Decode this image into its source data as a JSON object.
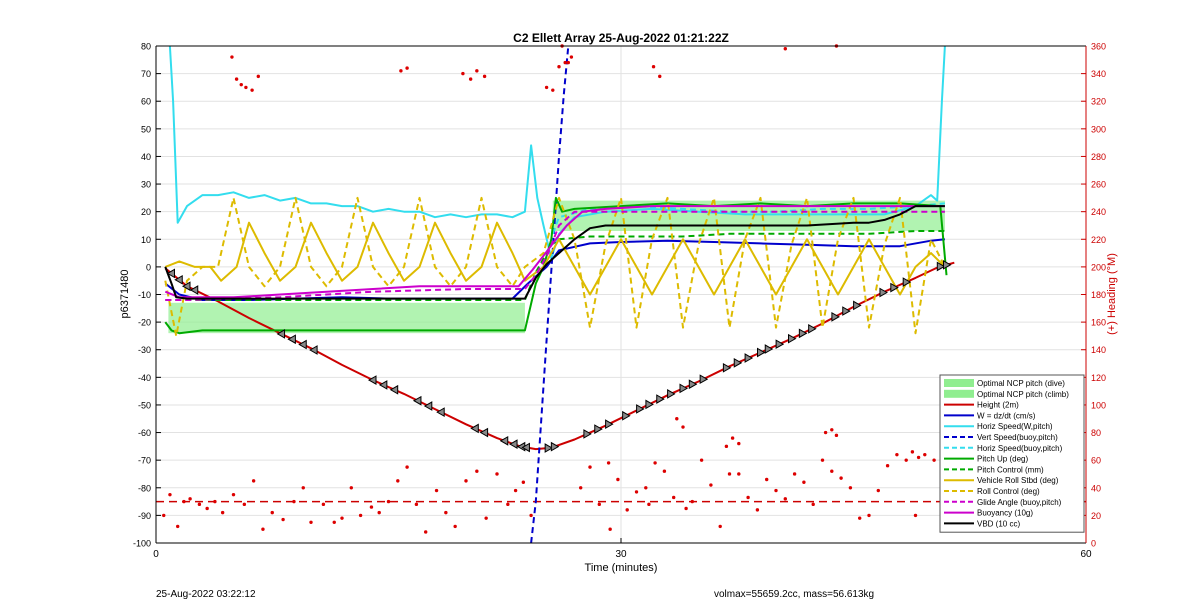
{
  "chart_data": {
    "type": "line",
    "title": "C2 Ellett Array 25-Aug-2022 01:21:22Z",
    "xlabel": "Time (minutes)",
    "ylabel_left": "p6371480",
    "ylabel_right": "(+) Heading (°M)",
    "xlim": [
      0,
      60
    ],
    "ylim_left": [
      -100,
      80
    ],
    "ylim_right": [
      0,
      360
    ],
    "x_ticks": [
      0,
      30,
      60
    ],
    "y_ticks_left": [
      -100,
      -90,
      -80,
      -70,
      -60,
      -50,
      -40,
      -30,
      -20,
      -10,
      0,
      10,
      20,
      30,
      40,
      50,
      60,
      70,
      80
    ],
    "y_ticks_right": [
      0,
      20,
      40,
      60,
      80,
      100,
      120,
      140,
      160,
      180,
      200,
      220,
      240,
      260,
      280,
      300,
      320,
      340,
      360
    ],
    "grid": true,
    "legend_position": "bottom-right",
    "series": [
      {
        "name": "Optimal NCP pitch (dive)",
        "color": "#90ee90",
        "style": "band",
        "x": [
          0.8,
          23.8
        ],
        "lower": -24,
        "upper": -13
      },
      {
        "name": "Optimal NCP pitch (climb)",
        "color": "#90ee90",
        "style": "band",
        "x": [
          25.6,
          50.9
        ],
        "lower": 13,
        "upper": 24
      },
      {
        "name": "Height (2m)",
        "color": "#cc0000",
        "style": "solid",
        "x": [
          0.6,
          2,
          4,
          6,
          8,
          10,
          12,
          14,
          16,
          18,
          20,
          22,
          23.5,
          24.5,
          25.5,
          27,
          29,
          31,
          33,
          35,
          37,
          39,
          41,
          43,
          45,
          47,
          49,
          50.5,
          51.5
        ],
        "y": [
          -0.5,
          -7,
          -12.5,
          -18.5,
          -24,
          -29.5,
          -35.5,
          -41,
          -46,
          -51.5,
          -57,
          -62,
          -65,
          -66,
          -65.5,
          -62.5,
          -57.5,
          -52,
          -46.5,
          -41.5,
          -36,
          -31,
          -26,
          -20.5,
          -14.5,
          -9,
          -4,
          0,
          1.5
        ]
      },
      {
        "name": "W = dz/dt (cm/s)",
        "color": "#0000cc",
        "style": "solid",
        "x": [
          0.6,
          1.5,
          3,
          6,
          9,
          12,
          15,
          18,
          21,
          23,
          24,
          25.2,
          26,
          28,
          30,
          33,
          36,
          39,
          42,
          45,
          48,
          50,
          50.9
        ],
        "y": [
          -6,
          -10,
          -12,
          -12,
          -11.5,
          -11,
          -11.5,
          -11.5,
          -11.5,
          -11.5,
          -6,
          0,
          6,
          8.5,
          9,
          9.5,
          9,
          8.5,
          8,
          7.5,
          7.5,
          9.5,
          10
        ]
      },
      {
        "name": "Horiz Speed(W,pitch)",
        "color": "#33ddee",
        "style": "solid",
        "x": [
          0.9,
          1.1,
          1.4,
          2,
          3,
          4,
          5,
          6,
          7,
          8,
          9,
          10,
          11,
          12,
          13,
          14,
          15,
          16,
          17,
          18,
          19,
          20,
          21,
          22,
          23,
          23.8,
          24.2,
          24.6,
          25,
          25.5,
          26,
          27,
          29,
          32,
          35,
          38,
          41,
          44,
          47,
          49,
          50,
          50.4,
          50.7,
          50.9
        ],
        "y": [
          80,
          60,
          16,
          22,
          26,
          26,
          27,
          25,
          26,
          24,
          25,
          23,
          23,
          22,
          22,
          20,
          21,
          20,
          20,
          18,
          19,
          18,
          19,
          19,
          18,
          20,
          44,
          25,
          15,
          3,
          12,
          18,
          20,
          21,
          20,
          19,
          19,
          19,
          19,
          22,
          26,
          24,
          60,
          80
        ]
      },
      {
        "name": "Vert Speed(buoy,pitch)",
        "color": "#0000cc",
        "style": "dashed",
        "x": [
          24.2,
          24.5,
          24.8,
          25.1,
          25.4,
          25.7,
          26.0,
          26.3,
          26.6
        ],
        "y": [
          -100,
          -85,
          -60,
          -35,
          -10,
          15,
          40,
          62,
          80
        ]
      },
      {
        "name": "Horiz Speed(buoy,pitch)",
        "color": "#33ddee",
        "style": "dashed",
        "x": [
          25.6,
          26,
          28,
          31,
          34,
          37,
          40,
          43,
          46,
          49,
          50.9
        ],
        "y": [
          12,
          18,
          21,
          22,
          21,
          20,
          20,
          21,
          21,
          22,
          23
        ]
      },
      {
        "name": "Pitch Up (deg)",
        "color": "#00aa00",
        "style": "solid",
        "x": [
          0.6,
          1,
          1.5,
          3,
          6,
          9,
          12,
          15,
          18,
          21,
          23.8,
          24.5,
          25,
          25.5,
          25.8,
          26.2,
          27,
          30,
          33,
          36,
          39,
          42,
          45,
          48,
          50.6,
          51
        ],
        "y": [
          -20,
          -23,
          -24,
          -23,
          -23,
          -23,
          -23,
          -23,
          -23,
          -23,
          -23,
          -6,
          0,
          10,
          25,
          20,
          21,
          22,
          23,
          22,
          23,
          22,
          23,
          23,
          22,
          -3
        ]
      },
      {
        "name": "Pitch Control (mm)",
        "color": "#00aa00",
        "style": "dashed",
        "x": [
          0.6,
          1.5,
          3,
          6,
          9,
          12,
          15,
          18,
          21,
          23.8,
          24.5,
          25.5,
          26,
          28,
          31,
          34,
          37,
          40,
          43,
          46,
          49,
          50.9
        ],
        "y": [
          -12,
          -12,
          -12,
          -12,
          -12,
          -12,
          -12,
          -12,
          -12,
          -12,
          -2,
          8,
          10,
          11,
          11,
          11,
          12,
          12,
          12,
          12,
          13,
          13
        ]
      },
      {
        "name": "Vehicle Roll Stbd (deg)",
        "color": "#ddbb00",
        "style": "solid",
        "x": [
          0.6,
          1.5,
          2.5,
          3.5,
          4.2,
          5.2,
          6,
          7,
          8,
          9,
          10,
          11,
          12,
          13,
          14,
          15,
          16,
          17,
          18,
          19,
          20,
          21,
          22,
          23,
          23.8,
          25,
          26,
          27,
          28,
          29,
          30,
          31,
          32,
          33,
          34,
          35,
          36,
          37,
          38,
          39,
          40,
          41,
          42,
          43,
          44,
          45,
          46,
          47,
          48,
          49,
          50,
          50.9
        ],
        "y": [
          0,
          2,
          0,
          0,
          -5,
          0,
          16,
          5,
          -5,
          0,
          16,
          5,
          -5,
          0,
          16,
          5,
          -5,
          0,
          16,
          5,
          -5,
          0,
          16,
          5,
          -5,
          0,
          10,
          0,
          -10,
          0,
          10,
          0,
          -10,
          0,
          10,
          0,
          -10,
          0,
          10,
          0,
          -10,
          0,
          10,
          0,
          -10,
          0,
          10,
          0,
          -10,
          0,
          5,
          0
        ]
      },
      {
        "name": "Roll Control (deg)",
        "color": "#ddbb00",
        "style": "dashed",
        "x": [
          0.6,
          1.3,
          2,
          3,
          4,
          5,
          6,
          7,
          8,
          9,
          10,
          11,
          12,
          13,
          14,
          15,
          16,
          17,
          18,
          19,
          20,
          21,
          22,
          23,
          23.8,
          25,
          26,
          27,
          28,
          29,
          30,
          31,
          32,
          33,
          34,
          35,
          36,
          37,
          38,
          39,
          40,
          41,
          42,
          43,
          44,
          45,
          46,
          47,
          48,
          49,
          50,
          50.9
        ],
        "y": [
          -5,
          -25,
          -5,
          0,
          0,
          25,
          0,
          -7,
          0,
          25,
          0,
          -7,
          0,
          25,
          0,
          -7,
          0,
          25,
          0,
          -7,
          0,
          25,
          0,
          -7,
          0,
          5,
          25,
          10,
          -22,
          8,
          25,
          -22,
          10,
          25,
          -22,
          8,
          25,
          -22,
          10,
          25,
          -22,
          8,
          25,
          -22,
          10,
          25,
          -22,
          8,
          25,
          -24,
          10,
          0
        ]
      },
      {
        "name": "Glide Angle (buoy,pitch)",
        "color": "#cc00cc",
        "style": "dashed",
        "x": [
          0.6,
          2,
          5,
          8,
          11,
          14,
          17,
          20,
          23.8,
          24.5,
          25.3,
          26,
          27,
          29,
          32,
          35,
          38,
          41,
          44,
          47,
          50,
          50.9
        ],
        "y": [
          -12,
          -12,
          -11.5,
          -11,
          -10,
          -9,
          -8.5,
          -8,
          -8,
          -3,
          5,
          15,
          20,
          20,
          20,
          20,
          20,
          20,
          20,
          20,
          20,
          20
        ]
      },
      {
        "name": "Buoyancy (10g)",
        "color": "#cc00cc",
        "style": "solid",
        "x": [
          0.6,
          1.5,
          3,
          5,
          8,
          11,
          14,
          17,
          20,
          23.4,
          24.3,
          25,
          25.8,
          26.5,
          27.5,
          29,
          32,
          35,
          38,
          41,
          44,
          47,
          50,
          50.9
        ],
        "y": [
          -9,
          -11,
          -11,
          -11,
          -10,
          -9,
          -8,
          -7,
          -7,
          -7,
          -1,
          4,
          10,
          15,
          20,
          21,
          22,
          22,
          22,
          22,
          22,
          22,
          22,
          22
        ]
      },
      {
        "name": "VBD (10 cc)",
        "color": "#000000",
        "style": "solid",
        "x": [
          0.6,
          1,
          1.3,
          2,
          4,
          6,
          8,
          10,
          12,
          14,
          16,
          18,
          20,
          22,
          23.8,
          24.5,
          25.2,
          26,
          27,
          28,
          29,
          30,
          33,
          36,
          39,
          42,
          45,
          46,
          47,
          48,
          49,
          50,
          50.9
        ],
        "y": [
          0,
          -6,
          -11,
          -11.5,
          -11.5,
          -11.5,
          -11.5,
          -11.5,
          -11.5,
          -11.5,
          -11.5,
          -11.5,
          -11.5,
          -11.5,
          -11.5,
          -4,
          1,
          5,
          10,
          14,
          15,
          15,
          15,
          15,
          15,
          15,
          16,
          16,
          17,
          19,
          22,
          22,
          22
        ]
      }
    ],
    "heading_points": {
      "name": "(+) Heading (°M)",
      "color": "#dd0000",
      "x": [
        0.5,
        0.9,
        1.4,
        1.8,
        2.2,
        2.8,
        3.3,
        3.8,
        4.3,
        5.0,
        5.7,
        6.3,
        6.9,
        7.5,
        8.2,
        8.9,
        9.5,
        10.0,
        10.8,
        11.5,
        12.0,
        12.6,
        13.2,
        13.9,
        14.4,
        15.0,
        15.6,
        16.2,
        16.8,
        17.4,
        18.1,
        18.7,
        19.3,
        20.0,
        20.7,
        21.3,
        22.0,
        22.7,
        23.2,
        23.7,
        24.2,
        4.9,
        5.2,
        5.5,
        5.8,
        6.2,
        6.6,
        15.8,
        16.2,
        19.8,
        20.3,
        20.7,
        21.2,
        25.2,
        25.6,
        26.0,
        26.4,
        26.8,
        27.4,
        28.0,
        28.6,
        29.2,
        29.8,
        30.4,
        31.0,
        31.6,
        32.2,
        32.8,
        33.4,
        34.0,
        34.6,
        35.2,
        35.8,
        36.4,
        37.0,
        37.6,
        38.2,
        38.8,
        39.4,
        40.0,
        40.6,
        41.2,
        41.8,
        42.4,
        43.0,
        43.6,
        44.2,
        44.8,
        45.4,
        46.0,
        46.6,
        47.2,
        47.8,
        48.4,
        49.0,
        49.6,
        50.2,
        50.7,
        32.1,
        32.5,
        40.6,
        43.9,
        26.2,
        26.6,
        29.3,
        31.8,
        33.6,
        34.2,
        36.8,
        37.2,
        37.6,
        43.2,
        43.6,
        43.9,
        48.8,
        49.2
      ],
      "y": [
        20,
        35,
        12,
        30,
        32,
        28,
        25,
        30,
        22,
        35,
        28,
        45,
        10,
        22,
        17,
        30,
        40,
        15,
        28,
        15,
        18,
        40,
        20,
        26,
        22,
        30,
        45,
        55,
        28,
        8,
        38,
        22,
        12,
        45,
        52,
        18,
        50,
        28,
        38,
        44,
        20,
        352,
        336,
        332,
        330,
        328,
        338,
        342,
        344,
        340,
        336,
        342,
        338,
        330,
        328,
        345,
        348,
        352,
        40,
        55,
        28,
        58,
        46,
        24,
        37,
        40,
        58,
        52,
        33,
        84,
        30,
        60,
        42,
        12,
        50,
        50,
        33,
        24,
        46,
        38,
        32,
        50,
        44,
        28,
        60,
        52,
        47,
        40,
        18,
        20,
        38,
        56,
        64,
        60,
        20,
        64,
        60,
        52,
        345,
        338,
        358,
        360,
        360,
        348,
        10,
        28,
        90,
        25,
        70,
        76,
        72,
        80,
        82,
        78,
        66,
        62
      ]
    },
    "heading_reference": {
      "value": 30,
      "color": "#cc0000",
      "style": "dashed"
    },
    "height_markers": {
      "x": [
        1.0,
        1.5,
        2.0,
        2.5,
        8.1,
        8.8,
        9.5,
        10.2,
        14.0,
        14.7,
        15.4,
        16.9,
        17.6,
        18.4,
        20.6,
        21.2,
        22.5,
        23.1,
        23.6,
        23.9,
        25.3,
        25.7,
        27.8,
        28.5,
        29.2,
        30.3,
        31.2,
        31.8,
        32.5,
        33.2,
        34.0,
        34.6,
        35.3,
        36.8,
        37.5,
        38.2,
        39.0,
        39.5,
        40.2,
        41.0,
        41.7,
        42.3,
        43.8,
        44.5,
        45.2,
        46.9,
        47.6,
        48.4,
        50.6,
        51.0
      ]
    }
  },
  "footer": {
    "left": "25-Aug-2022 03:22:12",
    "right": "volmax=55659.2cc, mass=56.613kg"
  }
}
